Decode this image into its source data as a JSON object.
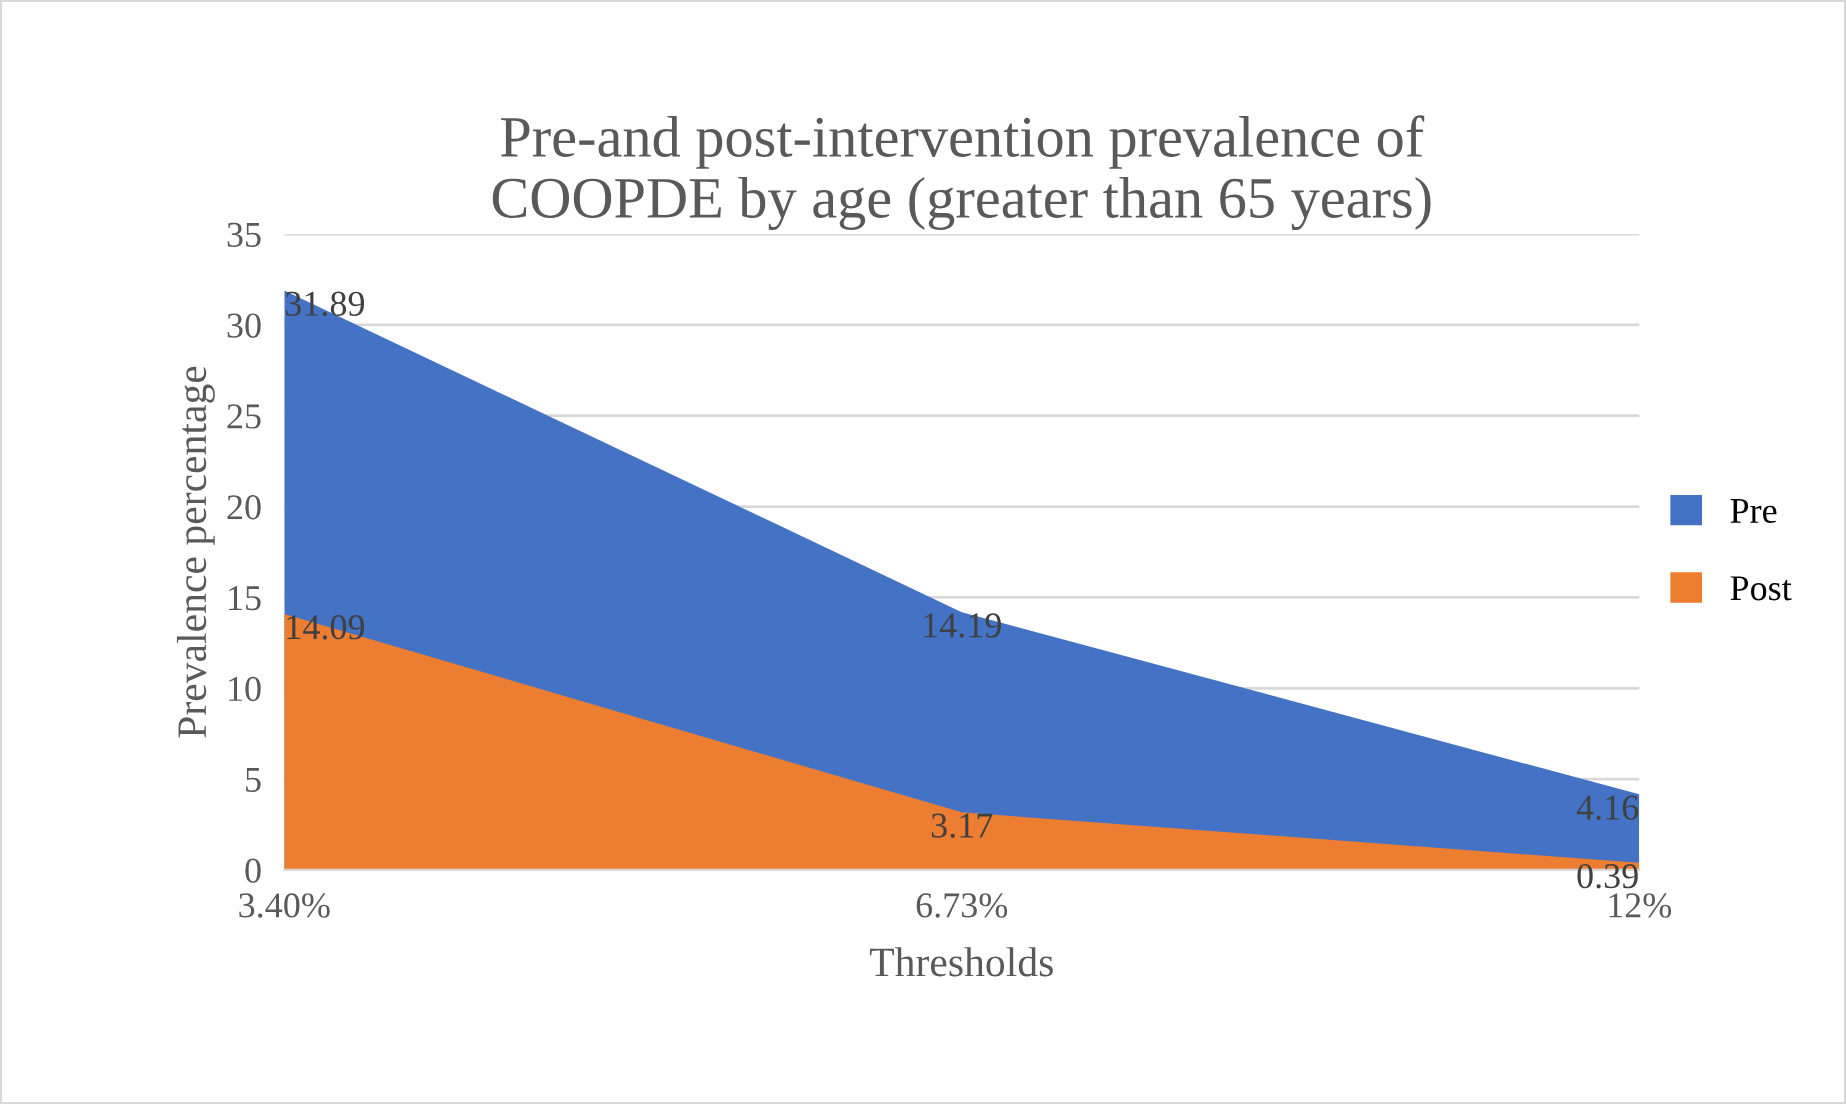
{
  "chart_data": {
    "type": "area",
    "title": "Pre-and post-intervention prevalence of\nCOOPDE by age (greater than 65 years)",
    "xlabel": "Thresholds",
    "ylabel": "Prevalence percentage",
    "categories": [
      "3.40%",
      "6.73%",
      "12%"
    ],
    "series": [
      {
        "name": "Pre",
        "color": "#4472c4",
        "values": [
          31.89,
          14.19,
          4.16
        ]
      },
      {
        "name": "Post",
        "color": "#ed7d31",
        "values": [
          14.09,
          3.17,
          0.39
        ]
      }
    ],
    "ylim": [
      0,
      35
    ],
    "yticks": [
      0,
      5,
      10,
      15,
      20,
      25,
      30,
      35
    ],
    "grid": "y",
    "legend": "right",
    "data_labels": true
  }
}
